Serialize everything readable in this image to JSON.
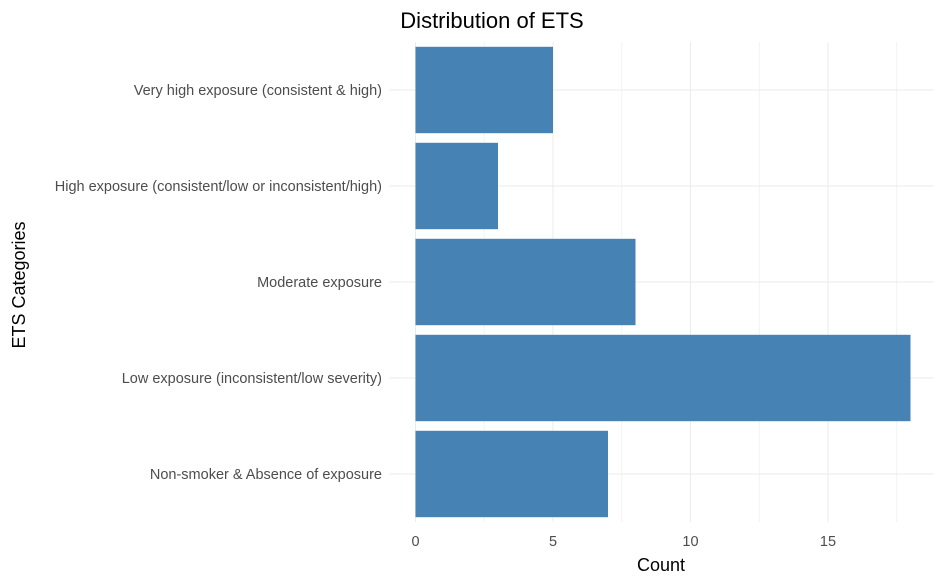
{
  "chart_data": {
    "type": "bar",
    "orientation": "horizontal",
    "title": "Distribution of ETS",
    "xlabel": "Count",
    "ylabel": "ETS Categories",
    "categories": [
      "Non-smoker & Absence of exposure",
      "Low exposure (inconsistent/low severity)",
      "Moderate exposure",
      "High exposure (consistent/low or inconsistent/high)",
      "Very high exposure (consistent & high)"
    ],
    "values": [
      7,
      18,
      8,
      3,
      5
    ],
    "xlim": [
      0,
      18.9
    ],
    "xticks": [
      0,
      5,
      10,
      15
    ],
    "xtick_labels": [
      "0",
      "5",
      "10",
      "15"
    ],
    "bar_color": "#4682B4",
    "grid": true,
    "legend": "none"
  }
}
